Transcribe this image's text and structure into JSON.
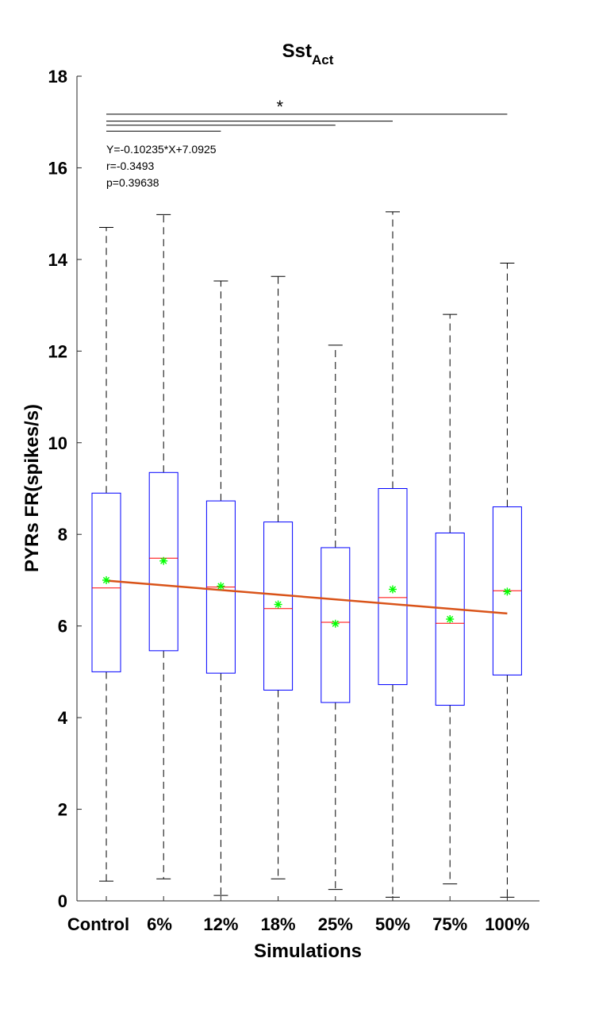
{
  "chart_data": {
    "type": "box",
    "title": {
      "main": "Sst",
      "subscript": "Act"
    },
    "xlabel": "Simulations",
    "ylabel": "PYRs FR(spikes/s)",
    "ylim": [
      0,
      18
    ],
    "yticks": [
      0,
      2,
      4,
      6,
      8,
      10,
      12,
      14,
      16,
      18
    ],
    "categories": [
      "Control",
      "6%",
      "12%",
      "18%",
      "25%",
      "50%",
      "75%",
      "100%"
    ],
    "boxes": [
      {
        "whisker_low": 0.43,
        "q1": 5.0,
        "median": 6.83,
        "q3": 8.9,
        "whisker_high": 14.7,
        "mean": 7.0
      },
      {
        "whisker_low": 0.48,
        "q1": 5.46,
        "median": 7.48,
        "q3": 9.35,
        "whisker_high": 14.98,
        "mean": 7.42
      },
      {
        "whisker_low": 0.12,
        "q1": 4.97,
        "median": 6.85,
        "q3": 8.73,
        "whisker_high": 13.53,
        "mean": 6.87
      },
      {
        "whisker_low": 0.48,
        "q1": 4.6,
        "median": 6.38,
        "q3": 8.27,
        "whisker_high": 13.63,
        "mean": 6.47
      },
      {
        "whisker_low": 0.25,
        "q1": 4.33,
        "median": 6.08,
        "q3": 7.71,
        "whisker_high": 12.13,
        "mean": 6.05
      },
      {
        "whisker_low": 0.08,
        "q1": 4.72,
        "median": 6.62,
        "q3": 9.0,
        "whisker_high": 15.04,
        "mean": 6.8
      },
      {
        "whisker_low": 0.37,
        "q1": 4.27,
        "median": 6.06,
        "q3": 8.03,
        "whisker_high": 12.8,
        "mean": 6.15
      },
      {
        "whisker_low": 0.08,
        "q1": 4.93,
        "median": 6.77,
        "q3": 8.6,
        "whisker_high": 13.92,
        "mean": 6.75
      }
    ],
    "regression": {
      "slope": -0.10235,
      "intercept": 7.0925,
      "x_start": 1,
      "x_end": 8
    },
    "stats_text": [
      "Y=-0.10235*X+7.0925",
      "r=-0.3493",
      "p=0.39638"
    ],
    "significance": {
      "bracket_values": [
        17.17,
        17.02,
        16.93,
        16.8
      ],
      "bracket_end_index": [
        7,
        5,
        4,
        2
      ],
      "star_value": 17.38,
      "star_index": 4,
      "star": "*"
    },
    "colors": {
      "box": "#0000ff",
      "median": "#ff0000",
      "whisker": "#000000",
      "mean": "#00ff00",
      "regression": "#d95319",
      "axis": "#262626"
    }
  }
}
